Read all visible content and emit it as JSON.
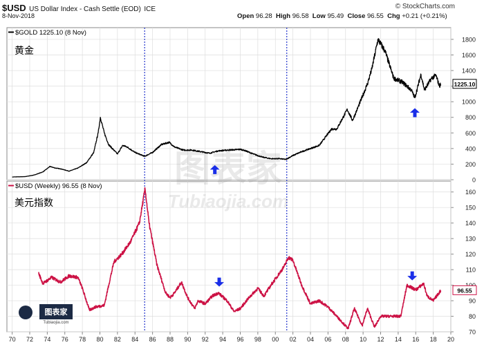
{
  "header": {
    "symbol": "$USD",
    "name": "US Dollar Index - Cash Settle (EOD)",
    "exchange": "ICE",
    "date": "8-Nov-2018",
    "credit": "© StockCharts.com",
    "open_label": "Open",
    "open": "96.28",
    "high_label": "High",
    "high": "96.58",
    "low_label": "Low",
    "low": "95.49",
    "close_label": "Close",
    "close": "96.55",
    "chg_label": "Chg",
    "chg": "+0.21 (+0.21%)"
  },
  "watermark": {
    "cn": "图表家",
    "en": "Tubiaojia.com"
  },
  "colors": {
    "gold": "#000000",
    "usd": "#cc1144",
    "arrow": "#1a2ee8",
    "vline": "#2233cc",
    "grid": "#dddddd"
  },
  "chart_data": [
    {
      "type": "line",
      "legend": "$GOLD 1225.10 (8 Nov)",
      "cn_label": "黄金",
      "last_value_label": "1225.10",
      "ylim": [
        0,
        1950
      ],
      "yticks": [
        0,
        200,
        400,
        600,
        800,
        1000,
        1200,
        1400,
        1600,
        1800
      ],
      "series": [
        {
          "name": "$GOLD",
          "x": [
            1970.0,
            1971.5,
            1972.5,
            1973.5,
            1974.3,
            1974.9,
            1975.5,
            1976.5,
            1977.5,
            1978.5,
            1979.3,
            1979.8,
            1980.05,
            1980.5,
            1981.0,
            1982.0,
            1982.6,
            1983.1,
            1984.0,
            1985.1,
            1986.0,
            1987.0,
            1987.9,
            1988.5,
            1989.5,
            1990.5,
            1991.5,
            1992.5,
            1993.5,
            1994.5,
            1995.5,
            1996.0,
            1996.5,
            1997.5,
            1998.5,
            1999.5,
            2000.5,
            2001.2,
            2002.0,
            2003.0,
            2004.0,
            2005.0,
            2006.0,
            2006.4,
            2007.0,
            2008.2,
            2008.8,
            2009.5,
            2010.5,
            2011.0,
            2011.7,
            2012.5,
            2013.5,
            2014.5,
            2015.5,
            2015.9,
            2016.6,
            2017.0,
            2017.8,
            2018.3,
            2018.7,
            2018.85
          ],
          "y": [
            35,
            40,
            60,
            100,
            170,
            150,
            140,
            110,
            150,
            220,
            350,
            600,
            800,
            600,
            450,
            330,
            440,
            420,
            350,
            300,
            350,
            450,
            480,
            420,
            380,
            380,
            360,
            340,
            370,
            380,
            385,
            390,
            375,
            330,
            290,
            270,
            270,
            260,
            310,
            360,
            400,
            440,
            590,
            650,
            650,
            900,
            760,
            950,
            1230,
            1420,
            1800,
            1650,
            1300,
            1250,
            1150,
            1050,
            1350,
            1150,
            1300,
            1340,
            1200,
            1225
          ]
        }
      ]
    },
    {
      "type": "line",
      "legend": "$USD (Weekly) 96.55 (8 Nov)",
      "cn_label": "美元指数",
      "last_value_label": "96.55",
      "ylim": [
        70,
        167
      ],
      "yticks": [
        70,
        80,
        90,
        100,
        110,
        120,
        130,
        140,
        150,
        160
      ],
      "xlim": [
        1969.4,
        2020.0
      ],
      "xticks": [
        "70",
        "72",
        "74",
        "76",
        "78",
        "80",
        "82",
        "84",
        "86",
        "88",
        "90",
        "92",
        "94",
        "96",
        "98",
        "00",
        "02",
        "04",
        "06",
        "08",
        "10",
        "12",
        "14",
        "16",
        "18",
        "20"
      ],
      "series": [
        {
          "name": "$USD",
          "x": [
            1973.0,
            1973.5,
            1974.5,
            1975.5,
            1976.5,
            1977.5,
            1978.0,
            1978.8,
            1979.5,
            1980.5,
            1981.0,
            1981.6,
            1982.5,
            1983.5,
            1984.5,
            1985.15,
            1985.6,
            1986.5,
            1987.5,
            1988.0,
            1988.5,
            1989.3,
            1990.0,
            1990.8,
            1991.2,
            1992.0,
            1992.8,
            1993.5,
            1994.5,
            1995.3,
            1996.0,
            1997.0,
            1998.0,
            1998.7,
            1999.5,
            2000.5,
            2001.0,
            2001.5,
            2002.0,
            2003.0,
            2004.0,
            2005.0,
            2006.0,
            2007.0,
            2008.3,
            2009.0,
            2009.9,
            2010.5,
            2011.3,
            2012.0,
            2013.0,
            2014.3,
            2015.0,
            2016.0,
            2016.9,
            2017.3,
            2018.0,
            2018.85
          ],
          "y": [
            108,
            101,
            105,
            102,
            106,
            105,
            98,
            84,
            86,
            87,
            100,
            115,
            120,
            128,
            140,
            162,
            140,
            113,
            95,
            92,
            95,
            102,
            92,
            85,
            90,
            88,
            93,
            95,
            90,
            83,
            85,
            92,
            98,
            93,
            100,
            108,
            112,
            118,
            116,
            100,
            88,
            90,
            86,
            80,
            72,
            85,
            74,
            85,
            73,
            80,
            80,
            80,
            100,
            97,
            101,
            93,
            90,
            96.55
          ]
        }
      ]
    }
  ],
  "annotations": {
    "vlines_x": [
      1985.1,
      2001.3
    ],
    "arrows": [
      {
        "panel": 0,
        "x": 1993.1,
        "y": 130,
        "direction": "up"
      },
      {
        "panel": 0,
        "x": 2015.9,
        "y": 860,
        "direction": "up"
      },
      {
        "panel": 1,
        "x": 1993.6,
        "y": 102,
        "direction": "down"
      },
      {
        "panel": 1,
        "x": 2015.6,
        "y": 106,
        "direction": "down"
      }
    ]
  }
}
